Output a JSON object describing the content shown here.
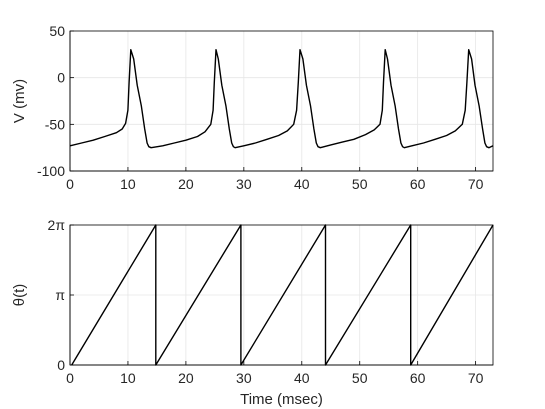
{
  "chart_data": [
    {
      "type": "line",
      "title": "",
      "xlabel": "",
      "ylabel": "V (mv)",
      "xlim": [
        0,
        73
      ],
      "ylim": [
        -100,
        50
      ],
      "grid": true,
      "xticks": [
        0,
        10,
        20,
        30,
        40,
        50,
        60,
        70
      ],
      "xtick_labels": [
        "0",
        "10",
        "20",
        "30",
        "40",
        "50",
        "60",
        "70"
      ],
      "yticks": [
        -100,
        -50,
        0,
        50
      ],
      "ytick_labels": [
        "-100",
        "-50",
        "0",
        "50"
      ],
      "series": [
        {
          "x": [
            0,
            2,
            4,
            6,
            8,
            9,
            9.6,
            10,
            10.2,
            10.5,
            11,
            11.6,
            12.3,
            12.9,
            13.3,
            13.6,
            14,
            16,
            18,
            20,
            22,
            23.3,
            24.3,
            24.7,
            24.9,
            25.2,
            25.6,
            26.2,
            26.9,
            27.5,
            27.9,
            28.2,
            28.5,
            30,
            32,
            34,
            36,
            37.5,
            38.6,
            39.1,
            39.4,
            39.7,
            40.2,
            40.8,
            41.5,
            42.1,
            42.5,
            42.8,
            43.2,
            45,
            47,
            49,
            51,
            52.5,
            53.5,
            53.9,
            54.1,
            54.4,
            54.8,
            55.4,
            56.1,
            56.7,
            57.1,
            57.4,
            57.7,
            59,
            61,
            63,
            65,
            66.5,
            67.7,
            68.2,
            68.5,
            68.8,
            69.3,
            69.9,
            70.6,
            71.2,
            71.6,
            71.9,
            72.3,
            73
          ],
          "y": [
            -73,
            -70,
            -67,
            -63,
            -59,
            -55,
            -49,
            -35,
            -5,
            30,
            20,
            -8,
            -30,
            -55,
            -70,
            -74,
            -75,
            -73,
            -70,
            -67,
            -63,
            -58,
            -50,
            -35,
            -5,
            30,
            20,
            -8,
            -30,
            -55,
            -70,
            -74,
            -75,
            -73,
            -70,
            -66,
            -62,
            -57,
            -50,
            -35,
            -5,
            30,
            20,
            -8,
            -30,
            -55,
            -70,
            -74,
            -75,
            -72,
            -69,
            -66,
            -61,
            -56,
            -50,
            -35,
            -5,
            30,
            20,
            -8,
            -30,
            -55,
            -70,
            -74,
            -75,
            -73,
            -70,
            -66,
            -62,
            -57,
            -50,
            -35,
            -5,
            30,
            20,
            -8,
            -30,
            -55,
            -70,
            -74,
            -75,
            -73
          ]
        }
      ]
    },
    {
      "type": "line",
      "title": "",
      "xlabel": "Time (msec)",
      "ylabel": "θ(t)",
      "xlim": [
        0,
        73
      ],
      "ylim": [
        0,
        6.2832
      ],
      "grid": true,
      "xticks": [
        0,
        10,
        20,
        30,
        40,
        50,
        60,
        70
      ],
      "xtick_labels": [
        "0",
        "10",
        "20",
        "30",
        "40",
        "50",
        "60",
        "70"
      ],
      "yticks": [
        0,
        3.1416,
        6.2832
      ],
      "ytick_labels": [
        "0",
        "π",
        "2π"
      ],
      "series": [
        {
          "x": [
            0.3,
            14.8,
            14.8,
            29.5,
            29.5,
            44.1,
            44.1,
            58.8,
            58.8,
            73
          ],
          "y": [
            0,
            6.2832,
            0,
            6.2832,
            0,
            6.2832,
            0,
            6.2832,
            0,
            6.2832
          ]
        }
      ]
    }
  ]
}
